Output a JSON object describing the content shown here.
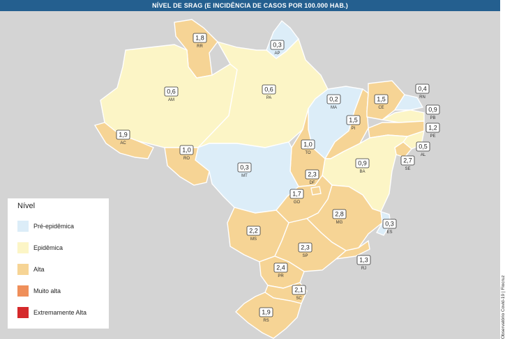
{
  "title": "NÍVEL DE SRAG (E INCIDÊNCIA DE CASOS POR 100.000 HAB.)",
  "credit": "Observatório Covid-19 | Fiocruz",
  "colors": {
    "pre_epidemica": "#dcedf8",
    "epidemica": "#fcf5c6",
    "alta": "#f6d495",
    "muito_alta": "#ef8f5a",
    "extremamente_alta": "#d5292b"
  },
  "legend": {
    "title": "Nível",
    "items": [
      {
        "label": "Pré-epidêmica",
        "color": "#dcedf8"
      },
      {
        "label": "Epidêmica",
        "color": "#fcf5c6"
      },
      {
        "label": "Alta",
        "color": "#f6d495"
      },
      {
        "label": "Muito alta",
        "color": "#ef8f5a"
      },
      {
        "label": "Extremamente Alta",
        "color": "#d5292b"
      }
    ]
  },
  "states": [
    {
      "uf": "RR",
      "value": "1,8",
      "level": "Alta"
    },
    {
      "uf": "AP",
      "value": "0,3",
      "level": "Pré-epidêmica"
    },
    {
      "uf": "AM",
      "value": "0,6",
      "level": "Epidêmica"
    },
    {
      "uf": "PA",
      "value": "0,6",
      "level": "Epidêmica"
    },
    {
      "uf": "MA",
      "value": "0,2",
      "level": "Pré-epidêmica"
    },
    {
      "uf": "CE",
      "value": "1,5",
      "level": "Alta"
    },
    {
      "uf": "RN",
      "value": "0,4",
      "level": "Pré-epidêmica"
    },
    {
      "uf": "PB",
      "value": "0,9",
      "level": "Epidêmica"
    },
    {
      "uf": "PE",
      "value": "1,2",
      "level": "Alta"
    },
    {
      "uf": "AL",
      "value": "0,5",
      "level": "Epidêmica"
    },
    {
      "uf": "SE",
      "value": "2,7",
      "level": "Alta"
    },
    {
      "uf": "PI",
      "value": "1,5",
      "level": "Alta"
    },
    {
      "uf": "AC",
      "value": "1,9",
      "level": "Alta"
    },
    {
      "uf": "RO",
      "value": "1,0",
      "level": "Alta"
    },
    {
      "uf": "TO",
      "value": "1,0",
      "level": "Alta"
    },
    {
      "uf": "BA",
      "value": "0,9",
      "level": "Epidêmica"
    },
    {
      "uf": "MT",
      "value": "0,3",
      "level": "Pré-epidêmica"
    },
    {
      "uf": "DF",
      "value": "2,3",
      "level": "Alta"
    },
    {
      "uf": "GO",
      "value": "1,7",
      "level": "Alta"
    },
    {
      "uf": "MG",
      "value": "2,8",
      "level": "Alta"
    },
    {
      "uf": "ES",
      "value": "0,3",
      "level": "Pré-epidêmica"
    },
    {
      "uf": "MS",
      "value": "2,2",
      "level": "Alta"
    },
    {
      "uf": "SP",
      "value": "2,3",
      "level": "Alta"
    },
    {
      "uf": "RJ",
      "value": "1,3",
      "level": "Alta"
    },
    {
      "uf": "PR",
      "value": "2,4",
      "level": "Alta"
    },
    {
      "uf": "SC",
      "value": "2,1",
      "level": "Alta"
    },
    {
      "uf": "RS",
      "value": "1,9",
      "level": "Alta"
    }
  ]
}
